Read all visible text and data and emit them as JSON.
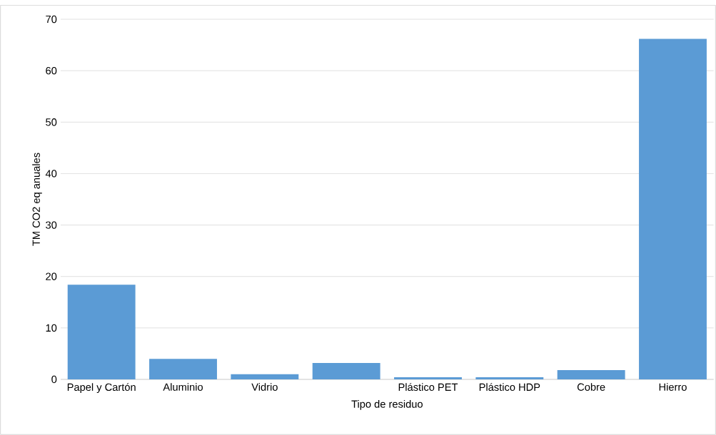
{
  "chart_data": {
    "type": "bar",
    "xlabel": "Tipo de residuo",
    "ylabel": "TM CO2 eq anuales",
    "categories": [
      "Papel y Cartón",
      "Aluminio",
      "Vidrio",
      null,
      "Plástico PET",
      "Plástico HDP",
      "Cobre",
      "Hierro"
    ],
    "values": [
      18.4,
      4.0,
      1.0,
      3.2,
      0.4,
      0.4,
      1.8,
      66.2
    ],
    "color": "#5b9bd5",
    "ylim": [
      0,
      70
    ],
    "yticks": [
      0,
      10,
      20,
      30,
      40,
      50,
      60,
      70
    ],
    "grid": "y"
  }
}
